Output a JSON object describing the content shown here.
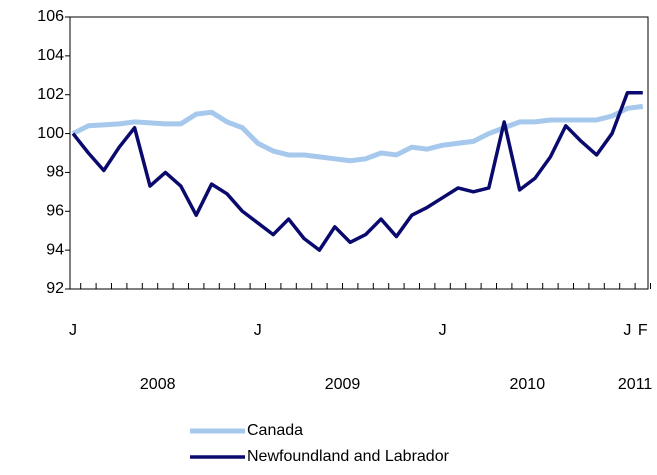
{
  "chart_data": {
    "type": "line",
    "categories": [
      "J",
      null,
      null,
      null,
      null,
      null,
      null,
      null,
      null,
      null,
      null,
      null,
      "J",
      null,
      null,
      null,
      null,
      null,
      null,
      null,
      null,
      null,
      null,
      null,
      "J",
      null,
      null,
      null,
      null,
      null,
      null,
      null,
      null,
      null,
      null,
      null,
      "J",
      "F"
    ],
    "years": [
      "2008",
      "2009",
      "2010",
      "2011"
    ],
    "series": [
      {
        "name": "Canada",
        "color": "#a6c8ec",
        "values": [
          100.0,
          100.4,
          100.45,
          100.5,
          100.6,
          100.55,
          100.5,
          100.5,
          101.0,
          101.1,
          100.6,
          100.3,
          99.5,
          99.1,
          98.9,
          98.9,
          98.8,
          98.7,
          98.6,
          98.7,
          99.0,
          98.9,
          99.3,
          99.2,
          99.4,
          99.5,
          99.6,
          100.0,
          100.3,
          100.6,
          100.6,
          100.7,
          100.7,
          100.7,
          100.7,
          100.9,
          101.3,
          101.4
        ]
      },
      {
        "name": "Newfoundland and Labrador",
        "color": "#0a0a6e",
        "values": [
          100.0,
          99.0,
          98.1,
          99.3,
          100.3,
          97.3,
          98.0,
          97.3,
          95.8,
          97.4,
          96.9,
          96.0,
          95.4,
          94.8,
          95.6,
          94.6,
          94.0,
          95.2,
          94.4,
          94.8,
          95.6,
          94.7,
          95.8,
          96.2,
          96.7,
          97.2,
          97.0,
          97.2,
          100.6,
          97.1,
          97.7,
          98.8,
          100.4,
          99.6,
          98.9,
          100.0,
          102.1,
          102.1
        ]
      }
    ],
    "ylim": [
      92,
      106
    ],
    "yticks": [
      92,
      94,
      96,
      98,
      100,
      102,
      104,
      106
    ],
    "grid": false,
    "legend": "bottom"
  }
}
